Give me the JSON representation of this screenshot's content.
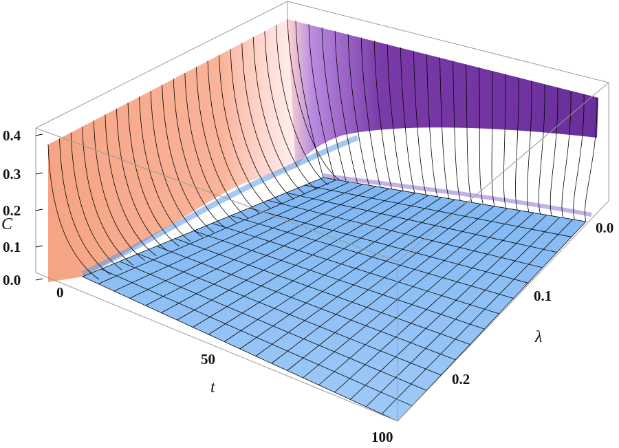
{
  "chart_data": {
    "type": "surface3d",
    "zlabel": "C",
    "xlabel": "t",
    "ylabel": "λ",
    "t_range": [
      0,
      100
    ],
    "lambda_range": [
      0,
      0.25
    ],
    "c_range": [
      0,
      0.4
    ],
    "z_ticks": [
      "0.0",
      "0.1",
      "0.2",
      "0.3",
      "0.4"
    ],
    "t_ticks": [
      "0",
      "50",
      "100"
    ],
    "lambda_ticks": [
      "0.0",
      "0.1",
      "0.2"
    ],
    "initial_value": 0.37,
    "ridge": {
      "t_values": [
        0,
        5,
        10,
        15,
        20,
        25,
        30,
        35,
        40,
        45,
        50,
        55,
        60,
        65,
        70,
        75,
        80,
        85,
        90,
        95,
        100
      ],
      "values_at_lambda_0": [
        0.37,
        0.37,
        0.37,
        0.37,
        0.37,
        0.37,
        0.37,
        0.37,
        0.37,
        0.37,
        0.37,
        0.37,
        0.37,
        0.37,
        0.37,
        0.37,
        0.37,
        0.37,
        0.37,
        0.37,
        0.37
      ]
    },
    "colors": {
      "low": "#8ec3f7",
      "mid": "#ffe6e6",
      "high_salmon": "#f8a887",
      "high_purple": "#6a2f9a",
      "mesh": "#000000",
      "box": "#9a9a9a"
    },
    "box": true,
    "mesh": true
  }
}
